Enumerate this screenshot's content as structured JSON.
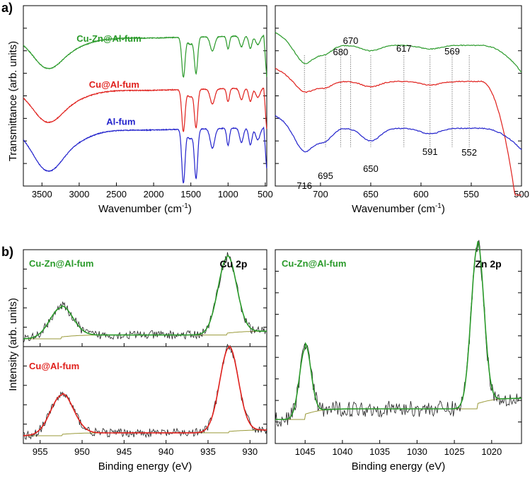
{
  "figure": {
    "panel_a_letter": "a)",
    "panel_b_letter": "b)",
    "colors": {
      "green": "#2a9a2a",
      "red": "#e0201c",
      "blue": "#2222cc",
      "olive": "#9a9a3a",
      "black": "#222222"
    }
  },
  "chart_data": [
    {
      "id": "ftir-full",
      "type": "line",
      "title": "",
      "xlabel": "Wavenumber (cm",
      "xlabel_sup": "-1",
      "xlabel_tail": ")",
      "ylabel": "Transmittance (arb. units)",
      "xlim": [
        3750,
        480
      ],
      "ylim": [
        0,
        1
      ],
      "xticks": [
        3500,
        3000,
        2500,
        2000,
        1500,
        1000,
        500
      ],
      "xtick_labels": [
        "3500",
        "3000",
        "2500",
        "2000",
        "1500",
        "1000",
        "500"
      ],
      "series": [
        {
          "name": "Cu-Zn@Al-fum",
          "color": "#2a9a2a",
          "offset": 0.82,
          "label_wn": 2600,
          "label_y": 0.8
        },
        {
          "name": "Cu@Al-fum",
          "color": "#e0201c",
          "offset": 0.53,
          "label_wn": 2530,
          "label_y": 0.545
        },
        {
          "name": "Al-fum",
          "color": "#2222cc",
          "offset": 0.31,
          "label_wn": 2440,
          "label_y": 0.34
        }
      ],
      "bands": [
        {
          "center": 3440,
          "width": 190,
          "depth": 0.14
        },
        {
          "center": 3150,
          "width": 260,
          "depth": 0.05
        },
        {
          "center": 1600,
          "width": 22,
          "depth": 0.22
        },
        {
          "center": 1430,
          "width": 22,
          "depth": 0.2
        },
        {
          "center": 1510,
          "width": 35,
          "depth": 0.04
        },
        {
          "center": 1210,
          "width": 30,
          "depth": 0.08
        },
        {
          "center": 1000,
          "width": 18,
          "depth": 0.07
        },
        {
          "center": 820,
          "width": 25,
          "depth": 0.06
        },
        {
          "center": 700,
          "width": 22,
          "depth": 0.07
        },
        {
          "center": 600,
          "width": 30,
          "depth": 0.05
        }
      ]
    },
    {
      "id": "ftir-zoom",
      "type": "line",
      "title": "",
      "xlabel": "Wavenumber (cm",
      "xlabel_sup": "-1",
      "xlabel_tail": ")",
      "xlim": [
        745,
        500
      ],
      "ylim": [
        0,
        1
      ],
      "xticks": [
        700,
        650,
        600,
        550,
        500
      ],
      "xtick_labels": [
        "700",
        "650",
        "600",
        "550",
        "500"
      ],
      "series": [
        {
          "name": "Cu-Zn@Al-fum",
          "color": "#2a9a2a"
        },
        {
          "name": "Cu@Al-fum",
          "color": "#e0201c"
        },
        {
          "name": "Al-fum",
          "color": "#2222cc"
        }
      ],
      "guide_lines": [
        716,
        695,
        680,
        670,
        650,
        617,
        591,
        569,
        552
      ],
      "annotations_top": [
        {
          "text": "680",
          "x": 680
        },
        {
          "text": "670",
          "x": 670
        },
        {
          "text": "617",
          "x": 617
        },
        {
          "text": "569",
          "x": 569
        }
      ],
      "annotations_bottom": [
        {
          "text": "716",
          "x": 716
        },
        {
          "text": "695",
          "x": 695
        },
        {
          "text": "650",
          "x": 650
        },
        {
          "text": "591",
          "x": 591
        },
        {
          "text": "552",
          "x": 552
        }
      ]
    },
    {
      "id": "xps-cu2p",
      "type": "line",
      "title": "Cu 2p",
      "xlabel": "Binding energy (eV)",
      "ylabel": "Intensity (arb. units)",
      "xlim": [
        957,
        928
      ],
      "xticks": [
        955,
        950,
        945,
        940,
        935,
        930
      ],
      "xtick_labels": [
        "955",
        "950",
        "945",
        "940",
        "935",
        "930"
      ],
      "subplots": [
        {
          "label": "Cu-Zn@Al-fum",
          "color": "#2a9a2a",
          "peaks": [
            {
              "center": 952.5,
              "fwhm": 3.2,
              "height": 0.32
            },
            {
              "center": 932.7,
              "fwhm": 2.6,
              "height": 0.8
            }
          ]
        },
        {
          "label": "Cu@Al-fum",
          "color": "#e0201c",
          "peaks": [
            {
              "center": 952.4,
              "fwhm": 3.2,
              "height": 0.42
            },
            {
              "center": 932.5,
              "fwhm": 2.6,
              "height": 0.88
            }
          ]
        }
      ]
    },
    {
      "id": "xps-zn2p",
      "type": "line",
      "title": "Zn 2p",
      "label": "Cu-Zn@Al-fum",
      "xlabel": "Binding energy (eV)",
      "xlim": [
        1049,
        1016
      ],
      "xticks": [
        1045,
        1040,
        1035,
        1030,
        1025,
        1020
      ],
      "xtick_labels": [
        "1045",
        "1040",
        "1035",
        "1030",
        "1025",
        "1020"
      ],
      "peaks": [
        {
          "center": 1045.0,
          "fwhm": 1.8,
          "height": 0.4
        },
        {
          "center": 1021.9,
          "fwhm": 2.0,
          "height": 0.92
        }
      ]
    }
  ]
}
